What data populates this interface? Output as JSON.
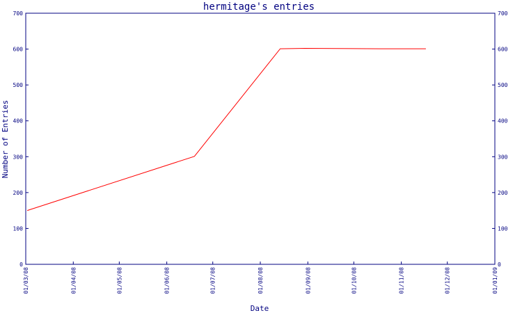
{
  "chart_data": {
    "type": "line",
    "title": "hermitage's entries",
    "xlabel": "Date",
    "ylabel": "Number of Entries",
    "ylim": [
      0,
      700
    ],
    "yticks": [
      0,
      100,
      200,
      300,
      400,
      500,
      600,
      700
    ],
    "xlim": [
      "01/03/08",
      "01/01/09"
    ],
    "xticks": [
      "01/03/08",
      "01/04/08",
      "01/05/08",
      "01/06/08",
      "01/07/08",
      "01/08/08",
      "01/09/08",
      "01/10/08",
      "01/11/08",
      "01/12/08",
      "01/01/09"
    ],
    "grid": false,
    "colors": {
      "axis": "#000080",
      "line": "#ff0000"
    },
    "series": [
      {
        "x": [
          "2008-03-02",
          "2008-06-19",
          "2008-08-14",
          "2008-08-30",
          "2008-10-18",
          "2008-11-17"
        ],
        "y": [
          150,
          301,
          601,
          602,
          601,
          601
        ]
      }
    ]
  }
}
